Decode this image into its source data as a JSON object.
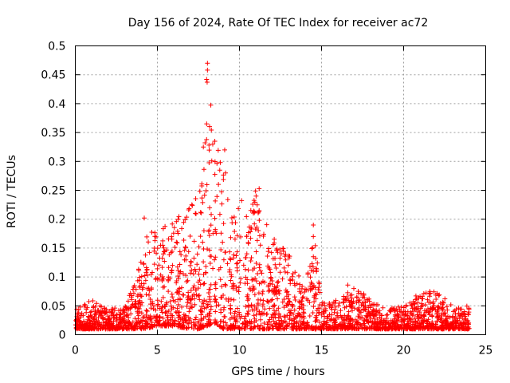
{
  "chart_data": {
    "type": "scatter",
    "title": "Day 156 of 2024, Rate Of TEC Index for receiver ac72",
    "xlabel": "GPS time / hours",
    "ylabel": "ROTI / TECUs",
    "xlim": [
      0,
      25
    ],
    "ylim": [
      0,
      0.5
    ],
    "xticks": [
      0,
      5,
      10,
      15,
      20,
      25
    ],
    "yticks": [
      0,
      0.05,
      0.1,
      0.15,
      0.2,
      0.25,
      0.3,
      0.35,
      0.4,
      0.45,
      0.5
    ],
    "xtick_labels": [
      "0",
      "5",
      "10",
      "15",
      "20",
      "25"
    ],
    "ytick_labels": [
      "0",
      "0.05",
      "0.1",
      "0.15",
      "0.2",
      "0.25",
      "0.3",
      "0.35",
      "0.4",
      "0.45",
      "0.5"
    ],
    "grid": true,
    "marker": "+",
    "marker_color": "#ff0000",
    "series_envelope": {
      "x": [
        0,
        1,
        2,
        3,
        3.8,
        4.2,
        5,
        6,
        7,
        7.5,
        8,
        8.5,
        9,
        9.5,
        10,
        11,
        12,
        13,
        14,
        14.5,
        15,
        16,
        17,
        18,
        19,
        20,
        21,
        22,
        23,
        24
      ],
      "upper": [
        0.045,
        0.06,
        0.045,
        0.05,
        0.1,
        0.2,
        0.18,
        0.2,
        0.22,
        0.26,
        0.47,
        0.33,
        0.32,
        0.2,
        0.24,
        0.25,
        0.17,
        0.14,
        0.08,
        0.19,
        0.06,
        0.06,
        0.085,
        0.06,
        0.045,
        0.05,
        0.075,
        0.075,
        0.05,
        0.05
      ],
      "lower": [
        0.01,
        0.01,
        0.01,
        0.01,
        0.01,
        0.01,
        0.015,
        0.015,
        0.01,
        0.01,
        0.015,
        0.02,
        0.01,
        0.01,
        0.01,
        0.01,
        0.01,
        0.01,
        0.01,
        0.01,
        0.01,
        0.01,
        0.01,
        0.01,
        0.01,
        0.01,
        0.01,
        0.01,
        0.01,
        0.01
      ]
    },
    "notable_points": [
      {
        "x": 8.05,
        "y": 0.47
      },
      {
        "x": 8.05,
        "y": 0.458
      },
      {
        "x": 8.0,
        "y": 0.442
      },
      {
        "x": 8.0,
        "y": 0.365
      },
      {
        "x": 8.5,
        "y": 0.335
      },
      {
        "x": 7.8,
        "y": 0.325
      },
      {
        "x": 9.1,
        "y": 0.32
      },
      {
        "x": 11.2,
        "y": 0.253
      },
      {
        "x": 11.2,
        "y": 0.215
      },
      {
        "x": 14.5,
        "y": 0.19
      },
      {
        "x": 14.5,
        "y": 0.17
      },
      {
        "x": 14.5,
        "y": 0.135
      },
      {
        "x": 14.5,
        "y": 0.11
      },
      {
        "x": 16.6,
        "y": 0.086
      },
      {
        "x": 21.6,
        "y": 0.075
      },
      {
        "x": 4.2,
        "y": 0.202
      },
      {
        "x": 7.1,
        "y": 0.225
      }
    ]
  }
}
